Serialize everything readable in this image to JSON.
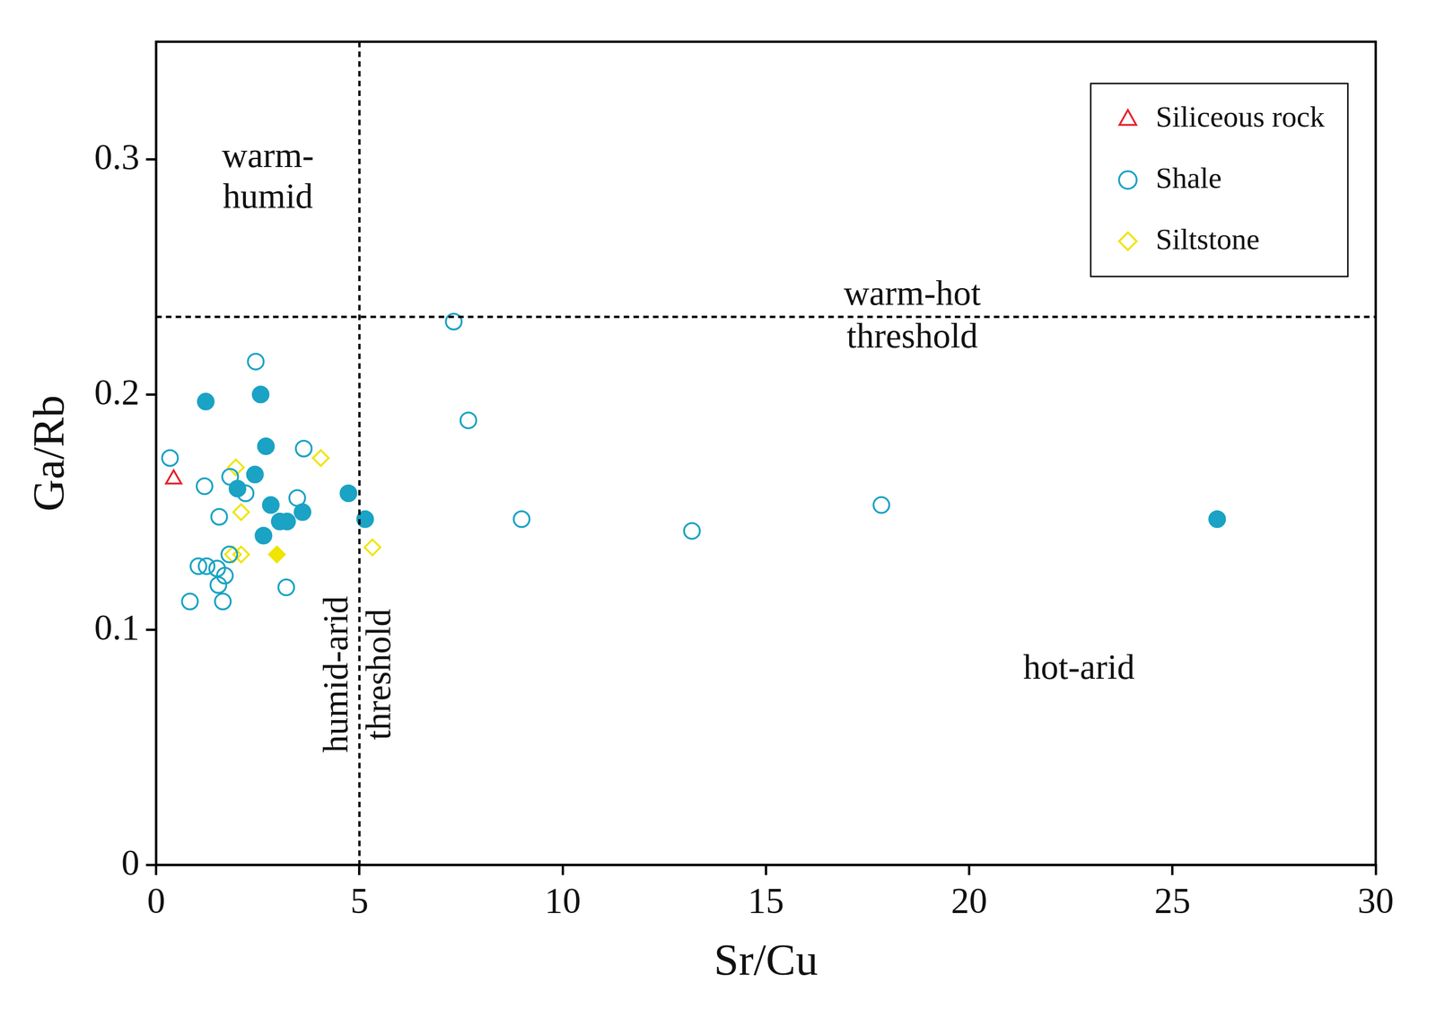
{
  "chart_data": {
    "type": "scatter",
    "x_label": "Sr/Cu",
    "y_label": "Ga/Rb",
    "xlim": [
      0,
      30
    ],
    "xticks": [
      0,
      5,
      10,
      15,
      20,
      25,
      30
    ],
    "ylim": [
      0,
      0.35
    ],
    "yticks": [
      0,
      0.1,
      0.2,
      0.3
    ],
    "grid": false,
    "legend": "top right",
    "series": [
      {
        "name": "Siliceous rock",
        "color": "#e8212b",
        "marker": "open-triangle",
        "x": [
          0.43
        ],
        "y": [
          0.164
        ]
      },
      {
        "name": "Shale",
        "color": "#1aa3c4",
        "marker": "open-circle",
        "x": [
          0.34,
          1.19,
          2.45,
          3.63,
          1.82,
          1.55,
          2.2,
          3.47,
          1.04,
          1.24,
          1.5,
          1.69,
          1.53,
          1.8,
          0.83,
          1.64,
          3.2,
          7.32,
          7.68,
          8.99,
          13.18,
          17.84
        ],
        "y": [
          0.173,
          0.161,
          0.214,
          0.177,
          0.165,
          0.148,
          0.158,
          0.156,
          0.127,
          0.127,
          0.126,
          0.123,
          0.119,
          0.132,
          0.112,
          0.112,
          0.118,
          0.231,
          0.189,
          0.147,
          0.142,
          0.153
        ]
      },
      {
        "name": "Shale",
        "color": "#1aa3c4",
        "marker": "filled-circle",
        "x": [
          1.22,
          2.57,
          2.7,
          2.43,
          2.0,
          2.82,
          2.64,
          3.04,
          3.22,
          3.6,
          4.73,
          5.14,
          26.1
        ],
        "y": [
          0.197,
          0.2,
          0.178,
          0.166,
          0.16,
          0.153,
          0.14,
          0.146,
          0.146,
          0.15,
          0.158,
          0.147,
          0.147
        ]
      },
      {
        "name": "Siltstone",
        "color": "#f0e400",
        "marker": "open-diamond",
        "x": [
          1.96,
          2.09,
          4.05,
          1.89,
          2.09,
          5.32
        ],
        "y": [
          0.169,
          0.15,
          0.173,
          0.132,
          0.132,
          0.135
        ]
      },
      {
        "name": "Siltstone",
        "color": "#f0e400",
        "marker": "filled-diamond",
        "x": [
          2.97
        ],
        "y": [
          0.132
        ]
      }
    ],
    "thresholds": [
      {
        "axis": "x",
        "value": 5,
        "lines": [
          "humid-arid",
          "threshold"
        ],
        "label_at": 0.081
      },
      {
        "axis": "y",
        "value": 0.233,
        "lines": [
          "warm-hot",
          "threshold"
        ],
        "label_at": 18.6
      }
    ],
    "annotations": [
      {
        "lines": [
          "warm-",
          "humid"
        ],
        "x": 2.75,
        "y": 0.292
      },
      {
        "lines": [
          "hot-arid"
        ],
        "x": 22.7,
        "y": 0.083
      }
    ]
  }
}
